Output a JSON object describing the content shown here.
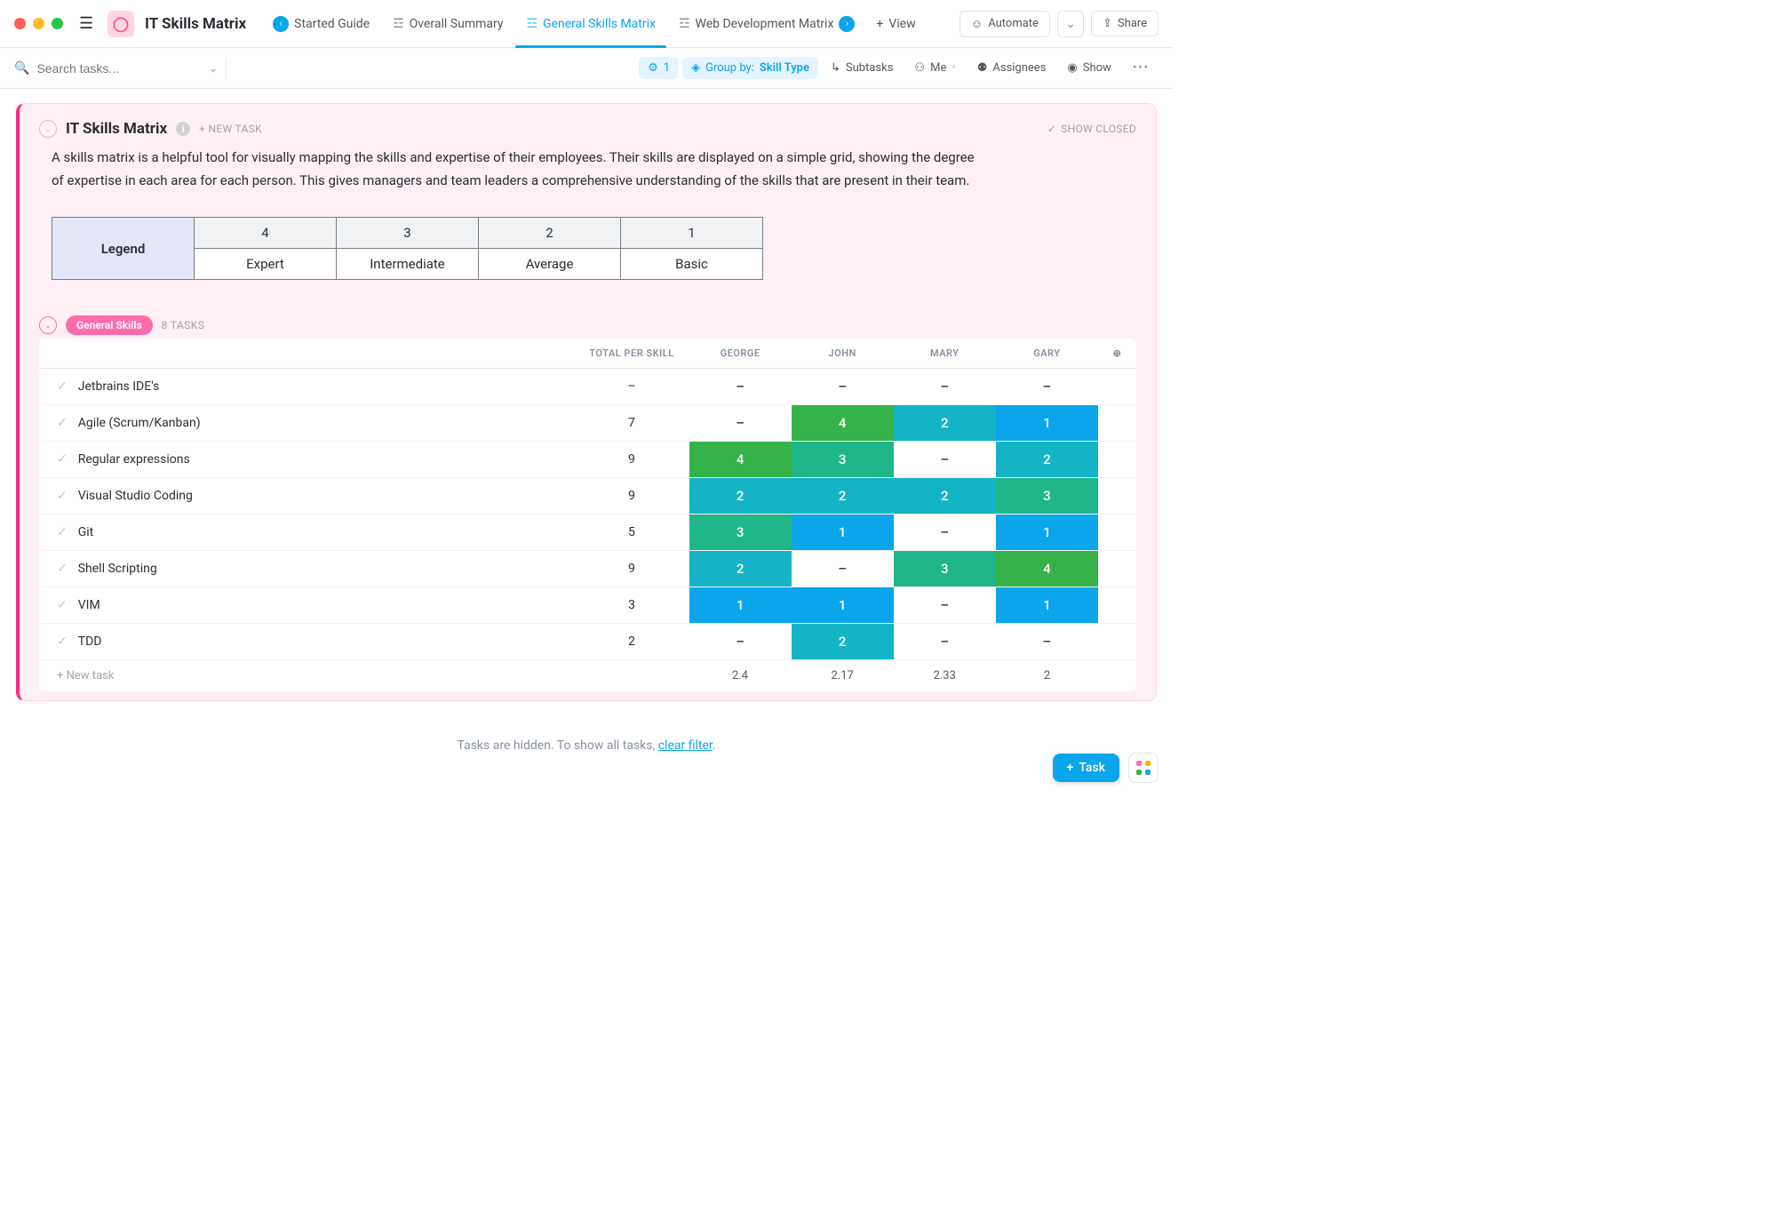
{
  "header": {
    "app_title": "IT Skills Matrix",
    "tabs": [
      {
        "label": "Started Guide",
        "icon": "‹",
        "badge_side": "left"
      },
      {
        "label": "Overall Summary",
        "icon": "☰"
      },
      {
        "label": "General Skills Matrix",
        "icon": "☰",
        "active": true
      },
      {
        "label": "Web Development Matrix",
        "icon": "☰",
        "badge_side": "right"
      }
    ],
    "view_btn": "View",
    "automate_btn": "Automate",
    "share_btn": "Share"
  },
  "toolbar": {
    "search_placeholder": "Search tasks...",
    "filter_count": "1",
    "group_label_prefix": "Group by:",
    "group_label_value": "Skill Type",
    "subtasks": "Subtasks",
    "me": "Me",
    "assignees": "Assignees",
    "show": "Show"
  },
  "card": {
    "title": "IT Skills Matrix",
    "new_task": "+ NEW TASK",
    "show_closed": "SHOW CLOSED",
    "description": "A skills matrix is a helpful tool for visually mapping the skills and expertise of their employees. Their skills are displayed on a simple grid, showing the degree of expertise in each area for each person. This gives managers and team leaders a comprehensive understanding of the skills that are present in their team."
  },
  "legend": {
    "header": "Legend",
    "cols": [
      "4",
      "3",
      "2",
      "1"
    ],
    "labels": [
      "Expert",
      "Intermediate",
      "Average",
      "Basic"
    ]
  },
  "group": {
    "name": "General Skills",
    "count": "8 TASKS"
  },
  "matrix": {
    "columns": [
      "TOTAL PER SKILL",
      "GEORGE",
      "JOHN",
      "MARY",
      "GARY"
    ],
    "rows": [
      {
        "name": "Jetbrains IDE's",
        "total": "–",
        "cells": [
          {
            "v": "–"
          },
          {
            "v": "–"
          },
          {
            "v": "–"
          },
          {
            "v": "–"
          }
        ]
      },
      {
        "name": "Agile (Scrum/Kanban)",
        "total": "7",
        "cells": [
          {
            "v": "–"
          },
          {
            "v": "4",
            "c": "#36b24a"
          },
          {
            "v": "2",
            "c": "#14b4c6"
          },
          {
            "v": "1",
            "c": "#0ba5ec"
          }
        ]
      },
      {
        "name": "Regular expressions",
        "total": "9",
        "cells": [
          {
            "v": "4",
            "c": "#36b24a"
          },
          {
            "v": "3",
            "c": "#1fb68a"
          },
          {
            "v": "–"
          },
          {
            "v": "2",
            "c": "#14b4c6"
          }
        ]
      },
      {
        "name": "Visual Studio Coding",
        "total": "9",
        "cells": [
          {
            "v": "2",
            "c": "#14b4c6"
          },
          {
            "v": "2",
            "c": "#14b4c6"
          },
          {
            "v": "2",
            "c": "#14b4c6"
          },
          {
            "v": "3",
            "c": "#1fb68a"
          }
        ]
      },
      {
        "name": "Git",
        "total": "5",
        "cells": [
          {
            "v": "3",
            "c": "#1fb68a"
          },
          {
            "v": "1",
            "c": "#0ba5ec"
          },
          {
            "v": "–"
          },
          {
            "v": "1",
            "c": "#0ba5ec"
          }
        ]
      },
      {
        "name": "Shell Scripting",
        "total": "9",
        "cells": [
          {
            "v": "2",
            "c": "#14b4c6"
          },
          {
            "v": "–"
          },
          {
            "v": "3",
            "c": "#1fb68a"
          },
          {
            "v": "4",
            "c": "#36b24a"
          }
        ]
      },
      {
        "name": "VIM",
        "total": "3",
        "cells": [
          {
            "v": "1",
            "c": "#0ba5ec"
          },
          {
            "v": "1",
            "c": "#0ba5ec"
          },
          {
            "v": "–"
          },
          {
            "v": "1",
            "c": "#0ba5ec"
          }
        ]
      },
      {
        "name": "TDD",
        "total": "2",
        "cells": [
          {
            "v": "–"
          },
          {
            "v": "2",
            "c": "#14b4c6"
          },
          {
            "v": "–"
          },
          {
            "v": "–"
          }
        ]
      }
    ],
    "footer": [
      "+ New task",
      "",
      "2.4",
      "2.17",
      "2.33",
      "2"
    ]
  },
  "hidden_msg": {
    "prefix": "Tasks are hidden. To show all tasks, ",
    "link": "clear filter",
    "suffix": "."
  },
  "fab": {
    "task": "Task"
  },
  "colors": {
    "apps": [
      "#ff6cab",
      "#ffb300",
      "#36b24a",
      "#0ba5ec"
    ]
  }
}
